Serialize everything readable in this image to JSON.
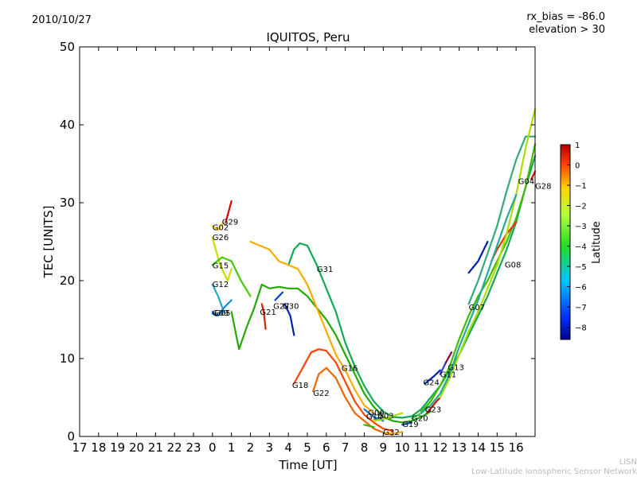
{
  "header": {
    "date": "2010/10/27",
    "rx_bias": "rx_bias = -86.0",
    "elevation": "elevation > 30"
  },
  "footer": {
    "line1": "LISN",
    "line2": "Low-Latitude Ionospheric Sensor Network"
  },
  "chart_data": {
    "type": "line",
    "title": "IQUITOS, Peru",
    "xlabel": "Time [UT]",
    "ylabel": "TEC [UNITS]",
    "xlim": [
      17,
      41
    ],
    "ylim": [
      0,
      50
    ],
    "xtick_values": [
      17,
      18,
      19,
      20,
      21,
      22,
      23,
      24,
      25,
      26,
      27,
      28,
      29,
      30,
      31,
      32,
      33,
      34,
      35,
      36,
      37,
      38,
      39,
      40
    ],
    "xtick_labels": [
      "17",
      "18",
      "19",
      "20",
      "21",
      "22",
      "23",
      "0",
      "1",
      "2",
      "3",
      "4",
      "5",
      "6",
      "7",
      "8",
      "9",
      "10",
      "11",
      "12",
      "13",
      "14",
      "15",
      "16"
    ],
    "yticks": [
      0,
      10,
      20,
      30,
      40,
      50
    ],
    "colorbar": {
      "label": "Latitude",
      "range": [
        -8.6,
        1
      ],
      "ticks": [
        1,
        0,
        -1,
        -2,
        -3,
        -4,
        -5,
        -6,
        -7,
        -8
      ]
    },
    "series": [
      {
        "name": "G02",
        "color": "#ffcc00",
        "points": [
          [
            24.0,
            27.0
          ],
          [
            24.3,
            26.5
          ],
          [
            24.6,
            27.5
          ]
        ]
      },
      {
        "name": "G29",
        "color": "#dd0000",
        "points": [
          [
            24.7,
            27.5
          ],
          [
            25.0,
            30.2
          ]
        ]
      },
      {
        "name": "G26",
        "color": "#ccdd00",
        "points": [
          [
            24.0,
            25.5
          ],
          [
            24.4,
            22.0
          ],
          [
            24.8,
            20.0
          ],
          [
            25.0,
            21.5
          ]
        ]
      },
      {
        "name": "G15",
        "color": "#44cc00",
        "points": [
          [
            24.0,
            22.0
          ],
          [
            24.5,
            23.0
          ],
          [
            25.0,
            22.5
          ],
          [
            25.5,
            20.0
          ],
          [
            26.0,
            18.0
          ]
        ]
      },
      {
        "name": "G12",
        "color": "#22aacc",
        "points": [
          [
            24.0,
            19.5
          ],
          [
            24.3,
            18.0
          ],
          [
            24.6,
            16.0
          ]
        ]
      },
      {
        "name": "G09",
        "color": "#1188dd",
        "points": [
          [
            24.0,
            16.0
          ],
          [
            24.3,
            15.5
          ],
          [
            24.6,
            16.5
          ],
          [
            25.0,
            17.5
          ]
        ]
      },
      {
        "name": "G05",
        "color": "#1166cc",
        "points": [
          [
            24.0,
            15.8
          ],
          [
            24.2,
            15.5
          ]
        ]
      },
      {
        "name": "G27",
        "color": "#22aa00",
        "points": [
          [
            25.0,
            16.0
          ],
          [
            25.4,
            11.2
          ],
          [
            25.8,
            14.0
          ],
          [
            26.2,
            16.5
          ],
          [
            26.6,
            19.5
          ],
          [
            27.0,
            19.0
          ],
          [
            27.5,
            19.2
          ],
          [
            28.0,
            19.0
          ],
          [
            28.5,
            19.0
          ],
          [
            29.0,
            18.0
          ],
          [
            29.5,
            16.5
          ],
          [
            30.0,
            15.0
          ],
          [
            30.5,
            13.0
          ],
          [
            31.0,
            10.5
          ],
          [
            31.5,
            8.0
          ],
          [
            32.0,
            5.5
          ],
          [
            32.5,
            3.8
          ],
          [
            33.0,
            2.5
          ],
          [
            33.5,
            2.0
          ],
          [
            34.0,
            1.8
          ],
          [
            34.5,
            2.0
          ],
          [
            35.0,
            2.5
          ],
          [
            35.5,
            3.2
          ]
        ]
      },
      {
        "name": "G21",
        "color": "#dd2200",
        "points": [
          [
            26.6,
            17.0
          ],
          [
            26.7,
            16.0
          ],
          [
            26.8,
            13.8
          ]
        ]
      },
      {
        "name": "G24",
        "color": "#0044cc",
        "points": [
          [
            27.3,
            17.5
          ],
          [
            27.7,
            18.5
          ]
        ]
      },
      {
        "name": "G30",
        "color": "#0022bb",
        "points": [
          [
            27.8,
            17.0
          ],
          [
            28.1,
            15.5
          ],
          [
            28.3,
            13.0
          ]
        ]
      },
      {
        "name": "G31",
        "color": "#11aa55",
        "points": [
          [
            28.0,
            22.0
          ],
          [
            28.3,
            24.0
          ],
          [
            28.6,
            24.8
          ],
          [
            29.0,
            24.5
          ],
          [
            29.5,
            22.0
          ],
          [
            30.0,
            19.0
          ],
          [
            30.5,
            16.0
          ],
          [
            31.0,
            12.0
          ],
          [
            31.5,
            9.0
          ],
          [
            32.0,
            6.5
          ],
          [
            32.5,
            4.5
          ],
          [
            33.0,
            3.2
          ],
          [
            33.5,
            2.5
          ],
          [
            34.0,
            2.4
          ],
          [
            34.5,
            2.6
          ],
          [
            35.0,
            3.5
          ],
          [
            35.5,
            5.0
          ],
          [
            36.0,
            6.5
          ],
          [
            36.5,
            8.5
          ],
          [
            37.0,
            10.5
          ],
          [
            37.5,
            13.0
          ],
          [
            38.0,
            15.5
          ],
          [
            38.5,
            18.0
          ],
          [
            39.0,
            21.0
          ],
          [
            39.5,
            24.0
          ],
          [
            40.0,
            27.5
          ],
          [
            40.5,
            32.0
          ],
          [
            41.0,
            36.0
          ]
        ]
      },
      {
        "name": "G18",
        "color": "#ff4400",
        "points": [
          [
            28.3,
            6.8
          ],
          [
            28.8,
            9.0
          ],
          [
            29.2,
            10.8
          ],
          [
            29.6,
            11.2
          ],
          [
            30.0,
            11.0
          ],
          [
            30.5,
            9.5
          ],
          [
            31.0,
            7.0
          ],
          [
            31.5,
            4.5
          ],
          [
            32.0,
            2.8
          ],
          [
            32.5,
            1.8
          ],
          [
            33.0,
            1.0
          ],
          [
            33.5,
            0.7
          ]
        ]
      },
      {
        "name": "G22",
        "color": "#ee6600",
        "points": [
          [
            29.3,
            5.8
          ],
          [
            29.6,
            8.0
          ],
          [
            30.0,
            8.8
          ],
          [
            30.5,
            7.5
          ],
          [
            31.0,
            5.0
          ],
          [
            31.5,
            3.0
          ],
          [
            32.0,
            2.0
          ],
          [
            32.5,
            1.0
          ],
          [
            33.0,
            0.5
          ],
          [
            33.5,
            0.2
          ]
        ]
      },
      {
        "name": "G16",
        "color": "#ffaa00",
        "points": [
          [
            26.0,
            25.0
          ],
          [
            26.5,
            24.5
          ],
          [
            27.0,
            24.0
          ],
          [
            27.5,
            22.5
          ],
          [
            28.0,
            22.0
          ],
          [
            28.5,
            21.5
          ],
          [
            29.0,
            19.5
          ],
          [
            29.5,
            16.5
          ],
          [
            30.0,
            13.5
          ],
          [
            30.5,
            10.5
          ],
          [
            31.0,
            8.5
          ],
          [
            31.5,
            6.0
          ],
          [
            32.0,
            4.0
          ],
          [
            32.5,
            3.0
          ]
        ]
      },
      {
        "name": "G06",
        "color": "#0077cc",
        "points": [
          [
            32.0,
            3.5
          ],
          [
            32.5,
            2.5
          ],
          [
            33.0,
            2.0
          ]
        ]
      },
      {
        "name": "G14",
        "color": "#33bb00",
        "points": [
          [
            32.0,
            1.5
          ],
          [
            32.5,
            1.2
          ]
        ]
      },
      {
        "name": "G03",
        "color": "#aadd00",
        "points": [
          [
            32.5,
            2.0
          ],
          [
            33.0,
            2.2
          ],
          [
            33.5,
            2.6
          ],
          [
            34.0,
            3.0
          ]
        ]
      },
      {
        "name": "G19",
        "color": "#0044aa",
        "points": [
          [
            34.0,
            1.5
          ],
          [
            34.5,
            1.8
          ]
        ]
      },
      {
        "name": "G20",
        "color": "#33cc55",
        "points": [
          [
            34.5,
            2.3
          ],
          [
            35.0,
            3.0
          ],
          [
            35.5,
            4.5
          ]
        ]
      },
      {
        "name": "G32",
        "color": "#ffaa00",
        "points": [
          [
            33.0,
            0.5
          ],
          [
            33.5,
            0.3
          ],
          [
            34.0,
            0.6
          ]
        ]
      },
      {
        "name": "G23",
        "color": "#cc1100",
        "points": [
          [
            35.3,
            3.0
          ],
          [
            35.8,
            4.5
          ],
          [
            36.0,
            5.0
          ]
        ]
      },
      {
        "name": "G24",
        "color": "#0022aa",
        "points": [
          [
            35.2,
            6.8
          ],
          [
            35.7,
            7.8
          ],
          [
            36.0,
            8.5
          ]
        ]
      },
      {
        "name": "G11",
        "color": "#2244cc",
        "points": [
          [
            36.0,
            8.0
          ],
          [
            36.3,
            9.5
          ]
        ]
      },
      {
        "name": "G13",
        "color": "#880044",
        "points": [
          [
            36.3,
            9.5
          ],
          [
            36.6,
            10.8
          ]
        ]
      },
      {
        "name": "G07",
        "color": "#44bb00",
        "points": [
          [
            35.0,
            3.2
          ],
          [
            35.5,
            4.5
          ],
          [
            36.0,
            6.5
          ],
          [
            36.5,
            9.0
          ],
          [
            37.0,
            12.5
          ],
          [
            37.5,
            15.5
          ],
          [
            38.0,
            18.0
          ],
          [
            38.5,
            20.0
          ],
          [
            39.0,
            22.5
          ],
          [
            39.5,
            25.0
          ],
          [
            40.0,
            28.0
          ],
          [
            40.5,
            32.0
          ],
          [
            41.0,
            37.5
          ]
        ]
      },
      {
        "name": "G08",
        "color": "#ee3300",
        "points": [
          [
            38.7,
            22.5
          ],
          [
            39.0,
            24.0
          ],
          [
            39.5,
            26.0
          ],
          [
            40.0,
            27.5
          ]
        ]
      },
      {
        "name": "G04",
        "color": "#33aa77",
        "points": [
          [
            37.5,
            17.0
          ],
          [
            38.0,
            20.0
          ],
          [
            38.5,
            23.5
          ],
          [
            39.0,
            27.0
          ],
          [
            39.5,
            31.5
          ],
          [
            40.0,
            35.5
          ],
          [
            40.5,
            38.5
          ],
          [
            41.0,
            38.5
          ]
        ]
      },
      {
        "name": "G28",
        "color": "#dd0000",
        "points": [
          [
            40.8,
            33.0
          ],
          [
            41.0,
            34.0
          ]
        ]
      },
      {
        "name": "",
        "color": "#0022aa",
        "points": [
          [
            37.5,
            21.0
          ],
          [
            38.0,
            22.5
          ],
          [
            38.5,
            25.0
          ]
        ]
      },
      {
        "name": "",
        "color": "#aadd00",
        "points": [
          [
            36.0,
            5.0
          ],
          [
            36.5,
            7.5
          ],
          [
            37.0,
            10.5
          ],
          [
            37.5,
            13.5
          ],
          [
            38.0,
            16.0
          ],
          [
            38.5,
            19.0
          ],
          [
            39.0,
            22.0
          ],
          [
            39.5,
            26.0
          ],
          [
            40.0,
            31.0
          ],
          [
            40.5,
            37.0
          ],
          [
            41.0,
            42.0
          ]
        ]
      },
      {
        "name": "",
        "color": "#22aa99",
        "points": [
          [
            35.0,
            3.0
          ],
          [
            35.5,
            4.0
          ],
          [
            36.0,
            5.5
          ],
          [
            36.5,
            8.0
          ],
          [
            37.0,
            11.5
          ],
          [
            37.5,
            14.5
          ],
          [
            38.0,
            17.5
          ],
          [
            38.5,
            21.0
          ],
          [
            39.0,
            24.5
          ],
          [
            39.5,
            28.0
          ],
          [
            40.0,
            31.0
          ]
        ]
      }
    ],
    "labels": [
      {
        "text": "G02",
        "x": 24.0,
        "y": 26.5
      },
      {
        "text": "G29",
        "x": 24.5,
        "y": 27.2
      },
      {
        "text": "G26",
        "x": 24.0,
        "y": 25.2
      },
      {
        "text": "G15",
        "x": 24.0,
        "y": 21.6
      },
      {
        "text": "G12",
        "x": 24.0,
        "y": 19.2
      },
      {
        "text": "G09",
        "x": 24.0,
        "y": 15.5
      },
      {
        "text": "G05",
        "x": 24.1,
        "y": 15.5
      },
      {
        "text": "G27",
        "x": 27.2,
        "y": 16.4
      },
      {
        "text": "G21",
        "x": 26.5,
        "y": 15.6
      },
      {
        "text": "G30",
        "x": 27.7,
        "y": 16.4
      },
      {
        "text": "G31",
        "x": 29.5,
        "y": 21.1
      },
      {
        "text": "G16",
        "x": 30.8,
        "y": 8.4
      },
      {
        "text": "G18",
        "x": 28.2,
        "y": 6.2
      },
      {
        "text": "G22",
        "x": 29.3,
        "y": 5.2
      },
      {
        "text": "G06",
        "x": 32.2,
        "y": 2.7
      },
      {
        "text": "G14",
        "x": 32.1,
        "y": 2.2
      },
      {
        "text": "G03",
        "x": 32.7,
        "y": 2.3
      },
      {
        "text": "G32",
        "x": 33.0,
        "y": 0.2
      },
      {
        "text": "G19",
        "x": 34.0,
        "y": 1.2
      },
      {
        "text": "G20",
        "x": 34.5,
        "y": 2.0
      },
      {
        "text": "G23",
        "x": 35.2,
        "y": 3.1
      },
      {
        "text": "G24",
        "x": 35.1,
        "y": 6.6
      },
      {
        "text": "G11",
        "x": 36.0,
        "y": 7.6
      },
      {
        "text": "G13",
        "x": 36.4,
        "y": 8.5
      },
      {
        "text": "G07",
        "x": 37.5,
        "y": 16.2
      },
      {
        "text": "G08",
        "x": 39.4,
        "y": 21.7
      },
      {
        "text": "G04",
        "x": 40.1,
        "y": 32.4
      },
      {
        "text": "G28",
        "x": 41.0,
        "y": 31.8
      }
    ]
  }
}
